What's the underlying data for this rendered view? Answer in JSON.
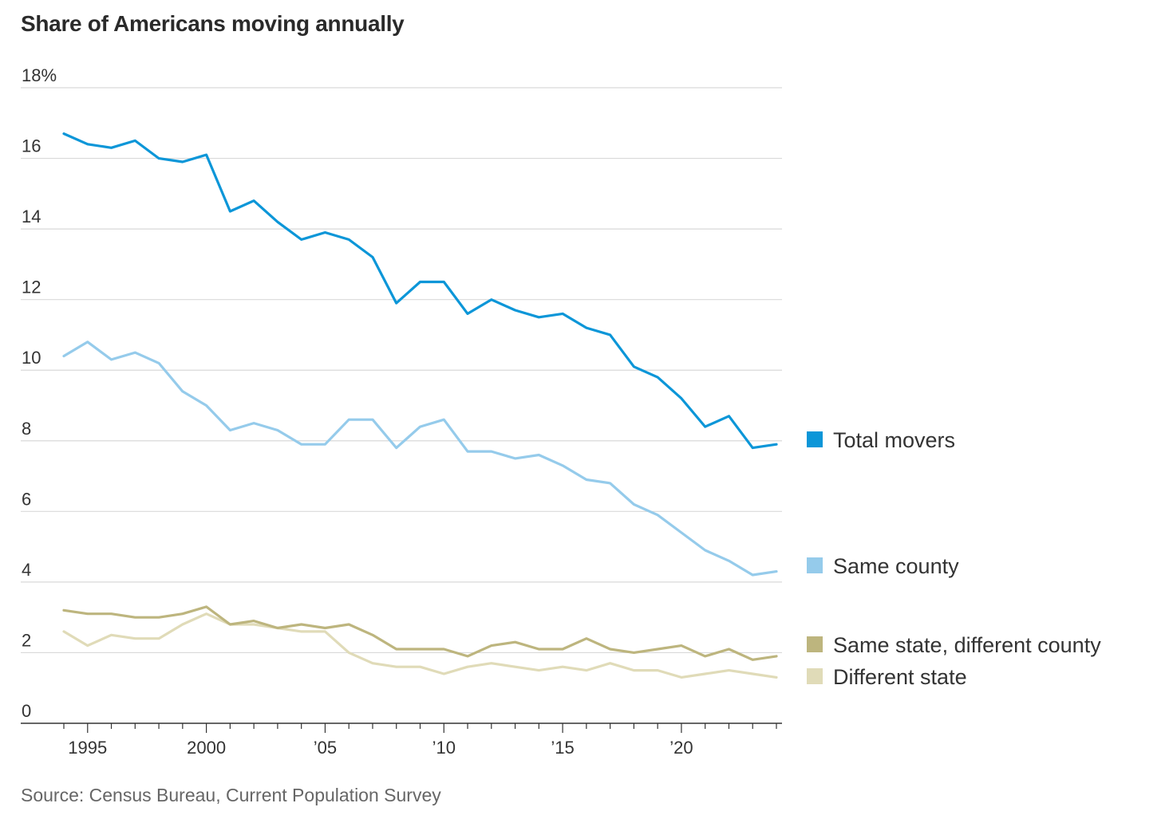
{
  "chart_data": {
    "type": "line",
    "title": "Share of Americans moving annually",
    "source": "Source: Census Bureau, Current Population Survey",
    "xlabel": "",
    "ylabel": "",
    "ylim": [
      0,
      18
    ],
    "xlim": [
      1994,
      2024
    ],
    "y_ticks": [
      {
        "value": 18,
        "label": "18%"
      },
      {
        "value": 16,
        "label": "16"
      },
      {
        "value": 14,
        "label": "14"
      },
      {
        "value": 12,
        "label": "12"
      },
      {
        "value": 10,
        "label": "10"
      },
      {
        "value": 8,
        "label": "8"
      },
      {
        "value": 6,
        "label": "6"
      },
      {
        "value": 4,
        "label": "4"
      },
      {
        "value": 2,
        "label": "2"
      },
      {
        "value": 0,
        "label": "0"
      }
    ],
    "x_ticks": [
      {
        "value": 1995,
        "label": "1995"
      },
      {
        "value": 2000,
        "label": "2000"
      },
      {
        "value": 2005,
        "label": "’05"
      },
      {
        "value": 2010,
        "label": "’10"
      },
      {
        "value": 2015,
        "label": "’15"
      },
      {
        "value": 2020,
        "label": "’20"
      }
    ],
    "grid": true,
    "legend_placement": "right",
    "x": [
      1994,
      1995,
      1996,
      1997,
      1998,
      1999,
      2000,
      2001,
      2002,
      2003,
      2004,
      2005,
      2006,
      2007,
      2008,
      2009,
      2010,
      2011,
      2012,
      2013,
      2014,
      2015,
      2016,
      2017,
      2018,
      2019,
      2020,
      2021,
      2022,
      2023,
      2024
    ],
    "series": [
      {
        "name": "Total movers",
        "color": "#0c96d8",
        "values": [
          16.7,
          16.4,
          16.3,
          16.5,
          16.0,
          15.9,
          16.1,
          14.5,
          14.8,
          14.2,
          13.7,
          13.9,
          13.7,
          13.2,
          11.9,
          12.5,
          12.5,
          11.6,
          12.0,
          11.7,
          11.5,
          11.6,
          11.2,
          11.0,
          10.1,
          9.8,
          9.2,
          8.4,
          8.7,
          7.8,
          7.9
        ]
      },
      {
        "name": "Same county",
        "color": "#95cbeb",
        "values": [
          10.4,
          10.8,
          10.3,
          10.5,
          10.2,
          9.4,
          9.0,
          8.3,
          8.5,
          8.3,
          7.9,
          7.9,
          8.6,
          8.6,
          7.8,
          8.4,
          8.6,
          7.7,
          7.7,
          7.5,
          7.6,
          7.3,
          6.9,
          6.8,
          6.2,
          5.9,
          5.4,
          4.9,
          4.6,
          4.2,
          4.3
        ]
      },
      {
        "name": "Same state, different county",
        "color": "#bdb57e",
        "values": [
          3.2,
          3.1,
          3.1,
          3.0,
          3.0,
          3.1,
          3.3,
          2.8,
          2.9,
          2.7,
          2.8,
          2.7,
          2.8,
          2.5,
          2.1,
          2.1,
          2.1,
          1.9,
          2.2,
          2.3,
          2.1,
          2.1,
          2.4,
          2.1,
          2.0,
          2.1,
          2.2,
          1.9,
          2.1,
          1.8,
          1.9
        ]
      },
      {
        "name": "Different state",
        "color": "#e0dbb8",
        "values": [
          2.6,
          2.2,
          2.5,
          2.4,
          2.4,
          2.8,
          3.1,
          2.8,
          2.8,
          2.7,
          2.6,
          2.6,
          2.0,
          1.7,
          1.6,
          1.6,
          1.4,
          1.6,
          1.7,
          1.6,
          1.5,
          1.6,
          1.5,
          1.7,
          1.5,
          1.5,
          1.3,
          1.4,
          1.5,
          1.4,
          1.3
        ]
      }
    ]
  }
}
